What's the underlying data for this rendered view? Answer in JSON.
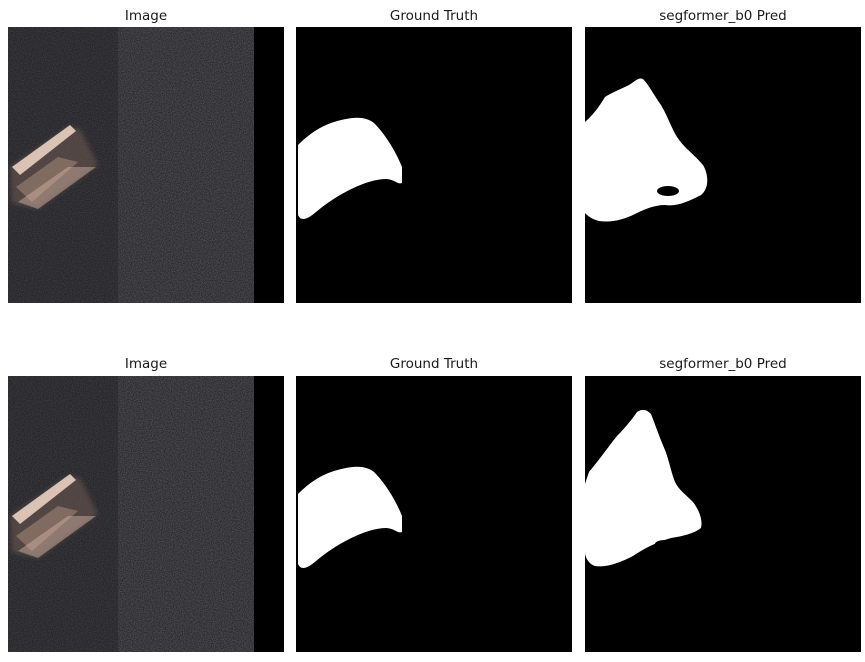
{
  "rows": [
    {
      "titles": [
        "Image",
        "Ground Truth",
        "segformer_b0 Pred"
      ]
    },
    {
      "titles": [
        "Image",
        "Ground Truth",
        "segformer_b0 Pred"
      ]
    }
  ],
  "colors": {
    "background": "#ffffff",
    "mask_background": "#000000",
    "mask_foreground": "#ffffff",
    "image_base": "#2a2a2e",
    "image_highlight": "#e9c9b5"
  }
}
